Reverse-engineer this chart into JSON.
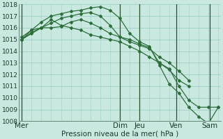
{
  "title": "Pression niveau de la mer( hPa )",
  "bg_color": "#c8e8e0",
  "grid_color": "#9ecec4",
  "line_color": "#2d6e3a",
  "ylim": [
    1008,
    1018
  ],
  "yticks": [
    1008,
    1009,
    1010,
    1011,
    1012,
    1013,
    1014,
    1015,
    1016,
    1017,
    1018
  ],
  "day_labels": [
    "Mer",
    "Dim",
    "Jeu",
    "Ven",
    "Sam"
  ],
  "day_positions": [
    0.0,
    3.5,
    4.2,
    5.5,
    6.7
  ],
  "vline_positions": [
    0.0,
    3.5,
    4.2,
    5.5,
    6.7
  ],
  "series": [
    {
      "x": [
        0.0,
        0.35,
        0.7,
        1.05,
        1.4,
        1.75,
        2.1,
        2.45,
        2.8,
        3.15,
        3.5,
        3.85,
        4.2,
        4.55,
        4.9,
        5.25,
        5.6,
        5.95
      ],
      "y": [
        1015.0,
        1015.6,
        1016.0,
        1016.7,
        1016.2,
        1016.0,
        1015.8,
        1015.4,
        1015.2,
        1015.0,
        1014.8,
        1014.4,
        1014.0,
        1013.5,
        1013.0,
        1012.4,
        1011.5,
        1011.0
      ]
    },
    {
      "x": [
        0.0,
        0.35,
        0.7,
        1.05,
        1.4,
        1.75,
        2.1,
        2.45,
        2.8,
        3.15,
        3.5,
        3.85,
        4.2,
        4.55,
        4.9,
        5.25,
        5.6,
        5.95
      ],
      "y": [
        1015.0,
        1015.5,
        1016.0,
        1016.0,
        1016.1,
        1016.5,
        1016.7,
        1016.4,
        1016.0,
        1015.5,
        1015.2,
        1014.8,
        1014.5,
        1014.2,
        1013.5,
        1013.0,
        1012.3,
        1011.5
      ]
    },
    {
      "x": [
        0.0,
        0.35,
        0.7,
        1.05,
        1.4,
        1.75,
        2.1,
        2.45,
        2.8,
        3.15,
        3.5,
        3.85,
        4.2,
        4.55,
        4.9,
        5.25,
        5.6,
        5.95,
        6.3,
        6.65,
        7.0
      ],
      "y": [
        1015.0,
        1015.8,
        1016.5,
        1017.0,
        1017.2,
        1017.4,
        1017.5,
        1017.7,
        1017.8,
        1017.5,
        1016.8,
        1015.5,
        1014.8,
        1014.4,
        1012.8,
        1011.2,
        1010.4,
        1009.2,
        1008.4,
        1007.8,
        1009.2
      ]
    },
    {
      "x": [
        0.0,
        0.35,
        0.7,
        1.05,
        1.4,
        1.75,
        2.1,
        2.45,
        2.8,
        3.15,
        3.5,
        3.85,
        4.2,
        4.55,
        4.9,
        5.25,
        5.6,
        5.95,
        6.3,
        6.65,
        7.0
      ],
      "y": [
        1015.2,
        1015.8,
        1016.0,
        1016.4,
        1016.8,
        1017.0,
        1017.2,
        1017.3,
        1017.0,
        1016.2,
        1015.2,
        1015.0,
        1014.6,
        1014.3,
        1013.0,
        1012.5,
        1011.0,
        1009.8,
        1009.2,
        1009.2,
        1009.2
      ]
    }
  ],
  "xlim": [
    -0.1,
    7.1
  ],
  "font_size_label": 7.5,
  "font_size_ytick": 6.5,
  "font_size_xtick": 7.5
}
